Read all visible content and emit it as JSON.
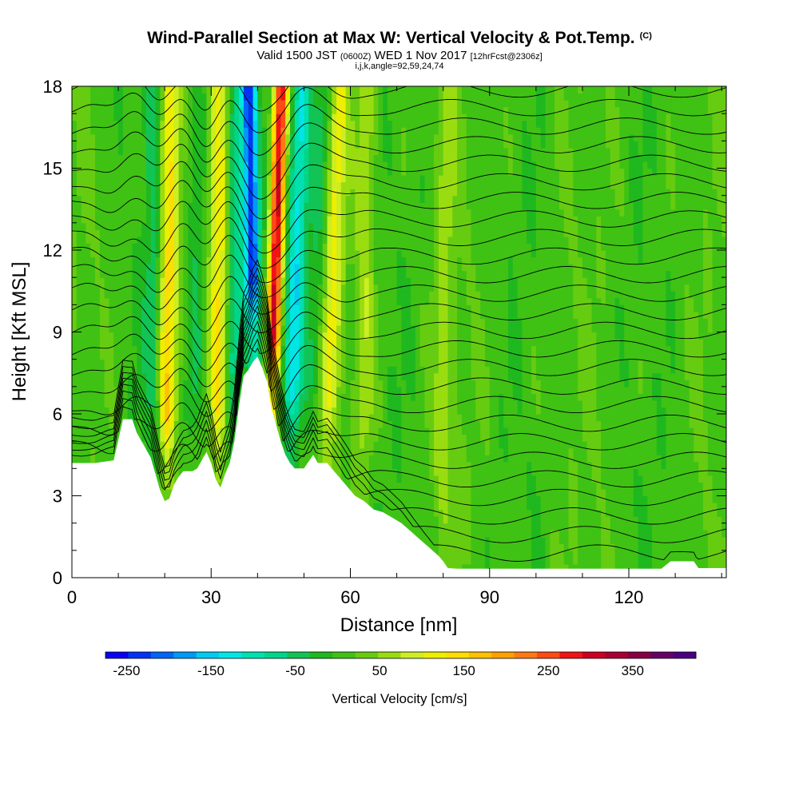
{
  "header": {
    "title": "Wind-Parallel Section at Max W: Vertical Velocity & Pot.Temp.",
    "copyright": "(C)",
    "valid_prefix": "Valid 1500 JST",
    "valid_utc": "(0600Z)",
    "valid_date": "WED 1 Nov 2017",
    "forecast": "[12hrFcst@2306z]",
    "grid_info": "i,j,k,angle=92,59,24,74"
  },
  "chart_data": {
    "type": "heatmap",
    "title": "Wind-Parallel Section at Max W: Vertical Velocity & Pot.Temp.",
    "xlabel": "Distance [nm]",
    "ylabel": "Height [Kft MSL]",
    "xlim": [
      0,
      141
    ],
    "ylim": [
      0,
      18
    ],
    "x_ticks": [
      "0",
      "30",
      "60",
      "90",
      "120"
    ],
    "y_ticks": [
      "0",
      "3",
      "6",
      "9",
      "12",
      "15",
      "18"
    ],
    "colorbar": {
      "title": "Vertical Velocity [cm/s]",
      "tick_labels": [
        "-250",
        "-150",
        "-50",
        "50",
        "150",
        "250",
        "350"
      ],
      "min": -275,
      "max": 425,
      "colors": [
        "#0a00f0",
        "#0033f5",
        "#0066f5",
        "#0099f5",
        "#00ccf0",
        "#00e6e6",
        "#00e0b0",
        "#00d68a",
        "#11c455",
        "#1fb81f",
        "#3fc214",
        "#66cc11",
        "#99dd11",
        "#ccee22",
        "#eeee00",
        "#ffdd00",
        "#ffc000",
        "#ffa000",
        "#ff7a14",
        "#ff4a14",
        "#f01414",
        "#cc0022",
        "#a80033",
        "#880044",
        "#660066",
        "#4a0080"
      ]
    },
    "terrain": [
      [
        0,
        4.2
      ],
      [
        5,
        4.2
      ],
      [
        9,
        4.3
      ],
      [
        11,
        5.8
      ],
      [
        13,
        5.8
      ],
      [
        14,
        5.3
      ],
      [
        16,
        4.7
      ],
      [
        17,
        4.4
      ],
      [
        18,
        3.8
      ],
      [
        19,
        3.2
      ],
      [
        20,
        2.8
      ],
      [
        21,
        2.9
      ],
      [
        22,
        3.4
      ],
      [
        23,
        3.7
      ],
      [
        24,
        3.9
      ],
      [
        26,
        3.9
      ],
      [
        27,
        4.0
      ],
      [
        28,
        4.3
      ],
      [
        29,
        4.6
      ],
      [
        30,
        4.2
      ],
      [
        31,
        3.6
      ],
      [
        32,
        3.3
      ],
      [
        33,
        3.8
      ],
      [
        34,
        4.2
      ],
      [
        35,
        5.0
      ],
      [
        36,
        6.3
      ],
      [
        37,
        7.4
      ],
      [
        38,
        7.6
      ],
      [
        39,
        7.9
      ],
      [
        40,
        8.1
      ],
      [
        41,
        7.7
      ],
      [
        42,
        7.2
      ],
      [
        43,
        6.2
      ],
      [
        44,
        5.6
      ],
      [
        45,
        5.0
      ],
      [
        46,
        4.5
      ],
      [
        47,
        4.2
      ],
      [
        48,
        4.0
      ],
      [
        50,
        4.0
      ],
      [
        52,
        4.5
      ],
      [
        53,
        4.2
      ],
      [
        55,
        4.2
      ],
      [
        57,
        3.8
      ],
      [
        59,
        3.4
      ],
      [
        61,
        3.0
      ],
      [
        63,
        2.8
      ],
      [
        65,
        2.5
      ],
      [
        67,
        2.4
      ],
      [
        69,
        2.2
      ],
      [
        71,
        2.0
      ],
      [
        73,
        1.7
      ],
      [
        75,
        1.4
      ],
      [
        77,
        1.1
      ],
      [
        79,
        0.8
      ],
      [
        80,
        0.6
      ],
      [
        81,
        0.35
      ],
      [
        83,
        0.33
      ],
      [
        110,
        0.33
      ],
      [
        115,
        0.33
      ],
      [
        122,
        0.33
      ],
      [
        127,
        0.33
      ],
      [
        129,
        0.6
      ],
      [
        134,
        0.6
      ],
      [
        135,
        0.35
      ],
      [
        141,
        0.35
      ]
    ],
    "updrafts": [
      {
        "x": 43,
        "w": 300
      },
      {
        "x": 20.5,
        "w": 140
      },
      {
        "x": 31.5,
        "w": 115
      },
      {
        "x": 55.5,
        "w": 95
      },
      {
        "x": 63,
        "w": 60
      },
      {
        "x": 80,
        "w": 45
      }
    ],
    "downdrafts": [
      {
        "x": 39.5,
        "w": -240
      },
      {
        "x": 47.5,
        "w": -140
      },
      {
        "x": 35,
        "w": -90
      },
      {
        "x": 17.5,
        "w": -60
      },
      {
        "x": 26.5,
        "w": -50
      },
      {
        "x": 52,
        "w": -50
      }
    ],
    "potential_temperature_levels_K": [
      290,
      292,
      294,
      296,
      298,
      300,
      302,
      304,
      306,
      308,
      310,
      312,
      314,
      316,
      318,
      320,
      322,
      324,
      326,
      328,
      330,
      332,
      334,
      336,
      338,
      340
    ]
  }
}
